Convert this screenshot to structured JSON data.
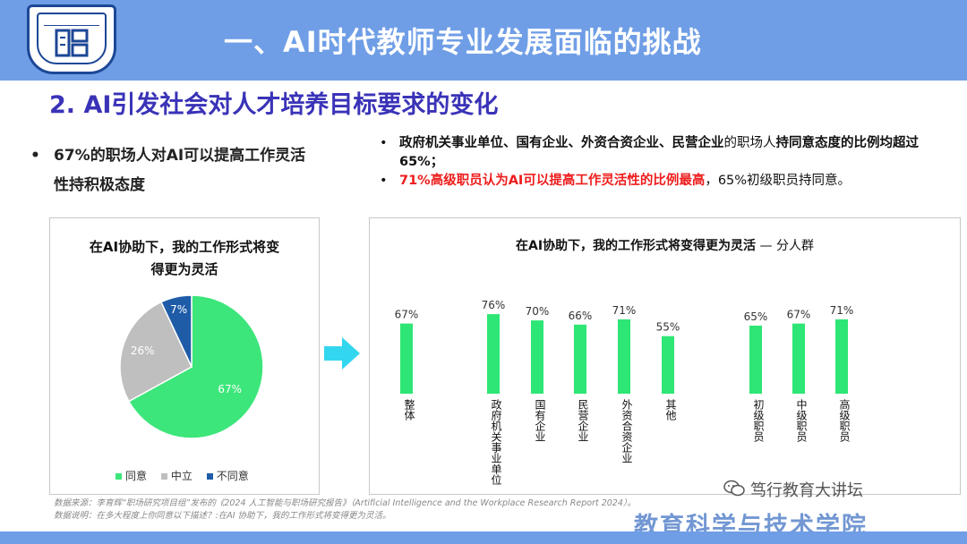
{
  "header": {
    "title": "一、AI时代教师专业发展面临的挑战"
  },
  "section": {
    "subtitle": "2. AI引发社会对人才培养目标要求的变化"
  },
  "left_point": {
    "bullet": "•",
    "line1": "67%的职场人对AI可以提高工作灵活",
    "line2": "性持积极态度"
  },
  "right_points": {
    "bullet": "•",
    "p1_bold_a": "政府机关事业单位、国有企业、外资合资企业、民营企业",
    "p1_normal": "的职场人",
    "p1_bold_b": "持同意态度的比例均超过65%；",
    "p2_red": "71%高级职员认为AI可以提高工作灵活性的比例最高",
    "p2_normal": "，65%初级职员持同意。"
  },
  "pie_chart": {
    "title_line1": "在AI协助下，我的工作形式将变",
    "title_line2": "得更为灵活",
    "legend": [
      {
        "label": "同意",
        "color": "#3ce67a"
      },
      {
        "label": "中立",
        "color": "#bfbfbf"
      },
      {
        "label": "不同意",
        "color": "#1f5ca8"
      }
    ]
  },
  "bar_chart": {
    "title_main": "在AI协助下，我的工作形式将变得更为灵活",
    "title_suffix": " — 分人群"
  },
  "chart_data": [
    {
      "type": "pie",
      "title": "在AI协助下，我的工作形式将变得更为灵活",
      "slices": [
        {
          "label": "同意",
          "value": 67,
          "display": "67%"
        },
        {
          "label": "中立",
          "value": 26,
          "display": "26%"
        },
        {
          "label": "不同意",
          "value": 7,
          "display": "7%"
        }
      ],
      "colors": [
        "#3ce67a",
        "#bfbfbf",
        "#1f5ca8"
      ],
      "legend": "bottom"
    },
    {
      "type": "bar",
      "title": "在AI协助下，我的工作形式将变得更为灵活 — 分人群",
      "color": "#2ee675",
      "categories": [
        "整体",
        "政府机关事业单位",
        "国有企业",
        "民营企业",
        "外资合资企业",
        "其他",
        "初级职员",
        "中级职员",
        "高级职员"
      ],
      "values": [
        67,
        76,
        70,
        66,
        71,
        55,
        65,
        67,
        71
      ],
      "value_labels": [
        "67%",
        "76%",
        "70%",
        "66%",
        "71%",
        "55%",
        "65%",
        "67%",
        "71%"
      ]
    }
  ],
  "footer": {
    "source_line1": "数据来源：李育辉“职场研究项目组”发布的《2024 人工智能与职场研究报告》（Artificial Intelligence and the Workplace Research Report 2024）。",
    "source_line2": "数据说明：在多大程度上你同意以下描述？:在AI 协助下，我的工作形式将变得更为灵活。",
    "wechat": "笃行教育大讲坛",
    "school": "教育科学与技术学院"
  }
}
